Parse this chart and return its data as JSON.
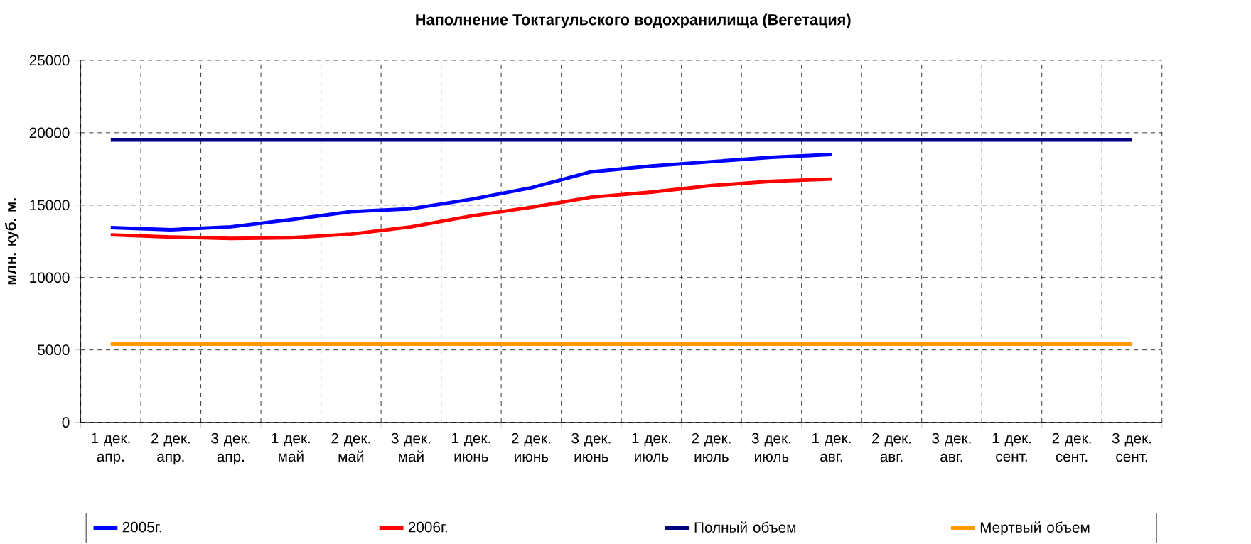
{
  "chart_data": {
    "type": "line",
    "title": "Наполнение Токтагульского водохранилища (Вегетация)",
    "ylabel": "млн. куб. м.",
    "categories": [
      "1 дек. апр.",
      "2 дек. апр.",
      "3 дек. апр.",
      "1 дек. май",
      "2 дек. май",
      "3 дек. май",
      "1 дек. июнь",
      "2 дек. июнь",
      "3 дек. июнь",
      "1 дек. июль",
      "2 дек. июль",
      "3 дек. июль",
      "1 дек. авг.",
      "2 дек. авг.",
      "3 дек. авг.",
      "1 дек. сент.",
      "2 дек. сент.",
      "3 дек. сент."
    ],
    "series": [
      {
        "name": "2005г.",
        "color": "#0000ff",
        "values": [
          13450,
          13300,
          13500,
          14000,
          14550,
          14750,
          15400,
          16200,
          17300,
          17700,
          18000,
          18300,
          18500,
          null,
          null,
          null,
          null,
          null
        ]
      },
      {
        "name": "2006г.",
        "color": "#ff0000",
        "values": [
          12950,
          12800,
          12700,
          12750,
          13000,
          13500,
          14250,
          14850,
          15550,
          15900,
          16350,
          16650,
          16800,
          null,
          null,
          null,
          null,
          null
        ]
      },
      {
        "name": "Полный объем",
        "color": "#000080",
        "values": [
          19500,
          19500,
          19500,
          19500,
          19500,
          19500,
          19500,
          19500,
          19500,
          19500,
          19500,
          19500,
          19500,
          19500,
          19500,
          19500,
          19500,
          19500
        ]
      },
      {
        "name": "Мертвый объем",
        "color": "#ff9900",
        "values": [
          5400,
          5400,
          5400,
          5400,
          5400,
          5400,
          5400,
          5400,
          5400,
          5400,
          5400,
          5400,
          5400,
          5400,
          5400,
          5400,
          5400,
          5400
        ]
      }
    ],
    "ylim": [
      0,
      25000
    ],
    "yticks": [
      0,
      5000,
      10000,
      15000,
      20000,
      25000
    ],
    "grid": true,
    "legend": "bottom",
    "marker": "none",
    "line_style": "solid"
  }
}
